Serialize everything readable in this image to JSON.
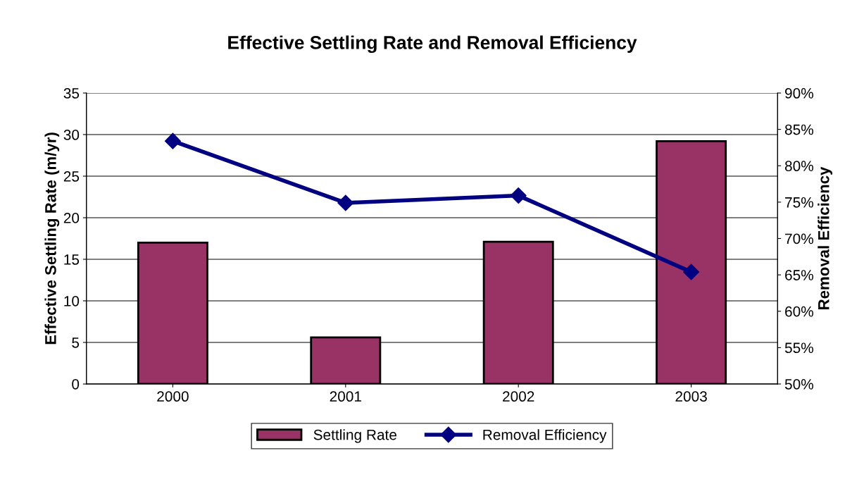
{
  "chart_data": {
    "type": "bar",
    "title": "Effective Settling Rate and Removal Efficiency",
    "categories": [
      "2000",
      "2001",
      "2002",
      "2003"
    ],
    "ylabel": "Effective Settling Rate (m/yr)",
    "y2label": "Removal Efficiency",
    "series": [
      {
        "name": "Settling Rate",
        "color": "#993366",
        "values": [
          17.0,
          5.6,
          17.1,
          29.2
        ]
      },
      {
        "name": "Removal Efficiency",
        "type": "line",
        "axis": "y2",
        "color": "#000080",
        "marker": "diamond",
        "values": [
          83.4,
          74.9,
          75.9,
          65.4
        ]
      }
    ],
    "ylim": [
      0,
      35
    ],
    "yticks": [
      0,
      5,
      10,
      15,
      20,
      25,
      30,
      35
    ],
    "y2lim": [
      50,
      90
    ],
    "y2ticks": [
      {
        "value": 50,
        "label": "50%"
      },
      {
        "value": 55,
        "label": "55%"
      },
      {
        "value": 60,
        "label": "60%"
      },
      {
        "value": 65,
        "label": "65%"
      },
      {
        "value": 70,
        "label": "70%"
      },
      {
        "value": 75,
        "label": "75%"
      },
      {
        "value": 80,
        "label": "80%"
      },
      {
        "value": 85,
        "label": "85%"
      },
      {
        "value": 90,
        "label": "90%"
      }
    ],
    "grid": "y",
    "legend": "bottom"
  }
}
